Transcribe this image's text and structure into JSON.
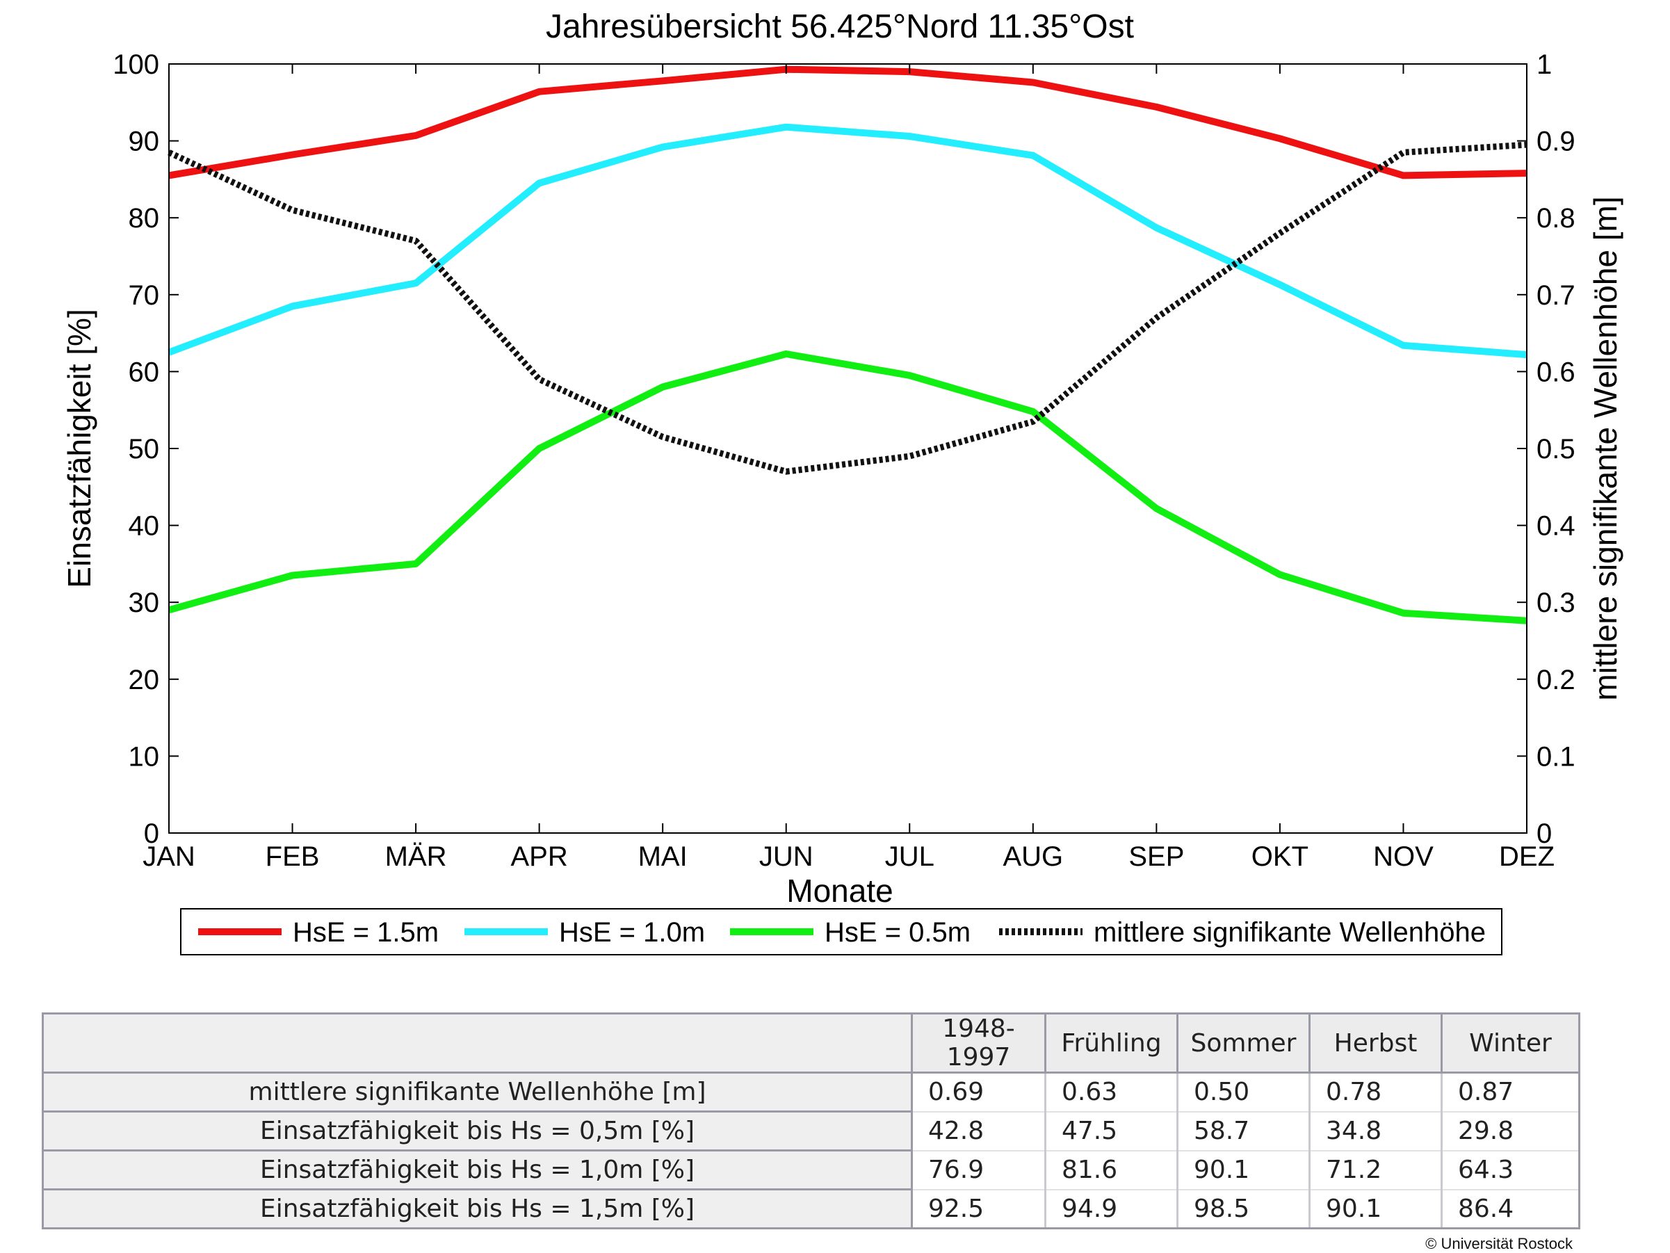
{
  "colors": {
    "hse15": "#ee1111",
    "hse10": "#22eeff",
    "hse05": "#11ee11",
    "wave": "#111111"
  },
  "chart_data": {
    "type": "line",
    "title": "Jahresübersicht  56.425°Nord  11.35°Ost",
    "xlabel": "Monate",
    "ylabel": "Einsatzfähigkeit [%]",
    "y2label": "mittlere signifikante Wellenhöhe [m]",
    "categories": [
      "JAN",
      "FEB",
      "MÄR",
      "APR",
      "MAI",
      "JUN",
      "JUL",
      "AUG",
      "SEP",
      "OKT",
      "NOV",
      "DEZ"
    ],
    "ylim": [
      0,
      100
    ],
    "y2lim": [
      0,
      1
    ],
    "yticks": [
      "0",
      "10",
      "20",
      "30",
      "40",
      "50",
      "60",
      "70",
      "80",
      "90",
      "100"
    ],
    "y2ticks": [
      "0",
      "0.1",
      "0.2",
      "0.3",
      "0.4",
      "0.5",
      "0.6",
      "0.7",
      "0.8",
      "0.9",
      "1"
    ],
    "grid": false,
    "legend_position": "bottom",
    "series": [
      {
        "name": "HsE = 1.5m",
        "axis": "left",
        "style": "solid",
        "color": "#ee1111",
        "values": [
          85.5,
          88.2,
          90.7,
          96.4,
          97.8,
          99.3,
          99.0,
          97.6,
          94.4,
          90.3,
          85.5,
          85.8
        ]
      },
      {
        "name": "HsE = 1.0m",
        "axis": "left",
        "style": "solid",
        "color": "#22eeff",
        "values": [
          62.5,
          68.5,
          71.5,
          84.5,
          89.2,
          91.8,
          90.6,
          88.1,
          78.7,
          71.3,
          63.4,
          62.2
        ]
      },
      {
        "name": "HsE = 0.5m",
        "axis": "left",
        "style": "solid",
        "color": "#11ee11",
        "values": [
          29.0,
          33.5,
          35.0,
          50.0,
          58.0,
          62.3,
          59.5,
          54.8,
          42.2,
          33.6,
          28.6,
          27.6
        ]
      },
      {
        "name": "mittlere signifikante Wellenhöhe",
        "axis": "right",
        "style": "dotted",
        "color": "#111111",
        "values": [
          0.885,
          0.81,
          0.77,
          0.59,
          0.515,
          0.47,
          0.49,
          0.535,
          0.67,
          0.78,
          0.885,
          0.895
        ]
      }
    ]
  },
  "table": {
    "header": [
      "",
      "1948-1997",
      "Frühling",
      "Sommer",
      "Herbst",
      "Winter"
    ],
    "rows": [
      {
        "label": "mittlere signifikante Wellenhöhe [m]",
        "values": [
          "0.69",
          "0.63",
          "0.50",
          "0.78",
          "0.87"
        ]
      },
      {
        "label": "Einsatzfähigkeit bis Hs = 0,5m [%]",
        "values": [
          "42.8",
          "47.5",
          "58.7",
          "34.8",
          "29.8"
        ]
      },
      {
        "label": "Einsatzfähigkeit bis Hs = 1,0m [%]",
        "values": [
          "76.9",
          "81.6",
          "90.1",
          "71.2",
          "64.3"
        ]
      },
      {
        "label": "Einsatzfähigkeit bis Hs = 1,5m [%]",
        "values": [
          "92.5",
          "94.9",
          "98.5",
          "90.1",
          "86.4"
        ]
      }
    ]
  },
  "copyright": "© Universität Rostock"
}
